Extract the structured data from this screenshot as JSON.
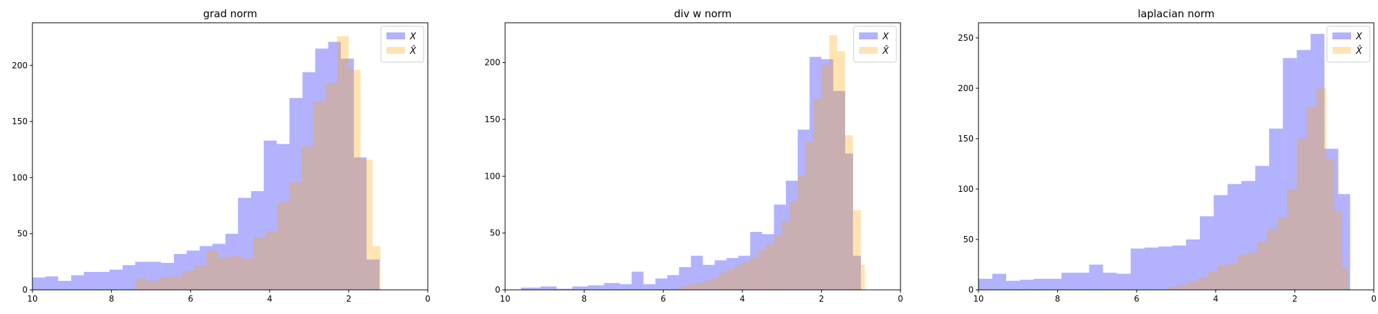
{
  "colors": {
    "x": "#0000ff",
    "xhat": "#ffa500"
  },
  "legend_labels": [
    "X",
    "X̂"
  ],
  "chart_data": [
    {
      "type": "histogram",
      "title": "grad norm",
      "xlim": [
        10,
        0
      ],
      "ylim": [
        0,
        238
      ],
      "xticks": [
        10,
        8,
        6,
        4,
        2,
        0
      ],
      "yticks": [
        0,
        50,
        100,
        150,
        200
      ],
      "legend": "top-right",
      "series": [
        {
          "name": "X",
          "bins": [
            [
              10.0,
              9.67,
              11
            ],
            [
              9.67,
              9.35,
              12
            ],
            [
              9.35,
              9.02,
              8
            ],
            [
              9.02,
              8.7,
              13
            ],
            [
              8.7,
              8.37,
              16
            ],
            [
              8.37,
              8.05,
              16
            ],
            [
              8.05,
              7.72,
              18
            ],
            [
              7.72,
              7.4,
              22
            ],
            [
              7.4,
              7.07,
              25
            ],
            [
              7.07,
              6.75,
              25
            ],
            [
              6.75,
              6.42,
              24
            ],
            [
              6.42,
              6.1,
              32
            ],
            [
              6.1,
              5.77,
              35
            ],
            [
              5.77,
              5.45,
              39
            ],
            [
              5.45,
              5.12,
              41
            ],
            [
              5.12,
              4.8,
              50
            ],
            [
              4.8,
              4.47,
              82
            ],
            [
              4.47,
              4.15,
              88
            ],
            [
              4.15,
              3.82,
              133
            ],
            [
              3.82,
              3.5,
              130
            ],
            [
              3.5,
              3.17,
              171
            ],
            [
              3.17,
              2.85,
              194
            ],
            [
              2.85,
              2.52,
              215
            ],
            [
              2.52,
              2.2,
              221
            ],
            [
              2.2,
              1.87,
              206
            ],
            [
              1.87,
              1.55,
              118
            ],
            [
              1.55,
              1.22,
              27
            ]
          ]
        },
        {
          "name": "X̂",
          "bins": [
            [
              7.4,
              7.1,
              10
            ],
            [
              7.1,
              6.8,
              8
            ],
            [
              6.8,
              6.5,
              11
            ],
            [
              6.5,
              6.2,
              12
            ],
            [
              6.2,
              5.9,
              17
            ],
            [
              5.9,
              5.6,
              22
            ],
            [
              5.6,
              5.3,
              35
            ],
            [
              5.3,
              5.0,
              29
            ],
            [
              5.0,
              4.7,
              30
            ],
            [
              4.7,
              4.4,
              28
            ],
            [
              4.4,
              4.1,
              47
            ],
            [
              4.1,
              3.8,
              52
            ],
            [
              3.8,
              3.5,
              78
            ],
            [
              3.5,
              3.2,
              96
            ],
            [
              3.2,
              2.9,
              128
            ],
            [
              2.9,
              2.6,
              168
            ],
            [
              2.6,
              2.3,
              184
            ],
            [
              2.3,
              2.0,
              226
            ],
            [
              2.0,
              1.7,
              196
            ],
            [
              1.7,
              1.4,
              116
            ],
            [
              1.4,
              1.2,
              39
            ]
          ]
        }
      ]
    },
    {
      "type": "histogram",
      "title": "div w norm",
      "xlim": [
        10,
        0
      ],
      "ylim": [
        0,
        235
      ],
      "xticks": [
        10,
        8,
        6,
        4,
        2,
        0
      ],
      "yticks": [
        0,
        50,
        100,
        150,
        200
      ],
      "legend": "top-right",
      "series": [
        {
          "name": "X",
          "bins": [
            [
              9.6,
              9.1,
              2
            ],
            [
              9.1,
              8.7,
              3
            ],
            [
              8.7,
              8.3,
              1
            ],
            [
              8.3,
              7.9,
              3
            ],
            [
              7.9,
              7.5,
              4
            ],
            [
              7.5,
              7.1,
              6
            ],
            [
              7.1,
              6.8,
              5
            ],
            [
              6.8,
              6.5,
              16
            ],
            [
              6.5,
              6.2,
              5
            ],
            [
              6.2,
              5.9,
              10
            ],
            [
              5.9,
              5.6,
              13
            ],
            [
              5.6,
              5.3,
              20
            ],
            [
              5.3,
              5.0,
              30
            ],
            [
              5.0,
              4.7,
              22
            ],
            [
              4.7,
              4.4,
              26
            ],
            [
              4.4,
              4.1,
              28
            ],
            [
              4.1,
              3.8,
              30
            ],
            [
              3.8,
              3.5,
              51
            ],
            [
              3.5,
              3.2,
              49
            ],
            [
              3.2,
              2.9,
              75
            ],
            [
              2.9,
              2.6,
              96
            ],
            [
              2.6,
              2.3,
              141
            ],
            [
              2.3,
              2.0,
              205
            ],
            [
              2.0,
              1.7,
              203
            ],
            [
              1.7,
              1.4,
              175
            ],
            [
              1.4,
              1.2,
              120
            ],
            [
              1.2,
              1.0,
              30
            ]
          ]
        },
        {
          "name": "X̂",
          "bins": [
            [
              5.6,
              5.4,
              3
            ],
            [
              5.4,
              5.2,
              5
            ],
            [
              5.2,
              5.0,
              6
            ],
            [
              5.0,
              4.8,
              8
            ],
            [
              4.8,
              4.6,
              10
            ],
            [
              4.6,
              4.4,
              15
            ],
            [
              4.4,
              4.2,
              18
            ],
            [
              4.2,
              4.0,
              22
            ],
            [
              4.0,
              3.8,
              25
            ],
            [
              3.8,
              3.6,
              28
            ],
            [
              3.6,
              3.4,
              35
            ],
            [
              3.4,
              3.2,
              40
            ],
            [
              3.2,
              3.0,
              48
            ],
            [
              3.0,
              2.8,
              60
            ],
            [
              2.8,
              2.6,
              78
            ],
            [
              2.6,
              2.4,
              100
            ],
            [
              2.4,
              2.2,
              130
            ],
            [
              2.2,
              2.0,
              168
            ],
            [
              2.0,
              1.8,
              198
            ],
            [
              1.8,
              1.6,
              224
            ],
            [
              1.6,
              1.4,
              210
            ],
            [
              1.4,
              1.2,
              136
            ],
            [
              1.2,
              1.0,
              70
            ],
            [
              1.0,
              0.9,
              22
            ]
          ]
        }
      ]
    },
    {
      "type": "histogram",
      "title": "laplacian norm",
      "xlim": [
        10,
        0
      ],
      "ylim": [
        0,
        265
      ],
      "xticks": [
        10,
        8,
        6,
        4,
        2,
        0
      ],
      "yticks": [
        0,
        50,
        100,
        150,
        200,
        250
      ],
      "legend": "top-right",
      "series": [
        {
          "name": "X",
          "bins": [
            [
              10.0,
              9.65,
              11
            ],
            [
              9.65,
              9.3,
              16
            ],
            [
              9.3,
              8.95,
              9
            ],
            [
              8.95,
              8.6,
              10
            ],
            [
              8.6,
              8.25,
              11
            ],
            [
              8.25,
              7.9,
              11
            ],
            [
              7.9,
              7.55,
              17
            ],
            [
              7.55,
              7.2,
              17
            ],
            [
              7.2,
              6.85,
              25
            ],
            [
              6.85,
              6.5,
              17
            ],
            [
              6.5,
              6.15,
              16
            ],
            [
              6.15,
              5.8,
              41
            ],
            [
              5.8,
              5.45,
              42
            ],
            [
              5.45,
              5.1,
              43
            ],
            [
              5.1,
              4.75,
              44
            ],
            [
              4.75,
              4.4,
              50
            ],
            [
              4.4,
              4.05,
              73
            ],
            [
              4.05,
              3.7,
              94
            ],
            [
              3.7,
              3.35,
              105
            ],
            [
              3.35,
              3.0,
              108
            ],
            [
              3.0,
              2.65,
              123
            ],
            [
              2.65,
              2.3,
              160
            ],
            [
              2.3,
              1.95,
              230
            ],
            [
              1.95,
              1.6,
              238
            ],
            [
              1.6,
              1.25,
              254
            ],
            [
              1.25,
              0.9,
              140
            ],
            [
              0.9,
              0.6,
              95
            ]
          ]
        },
        {
          "name": "X̂",
          "bins": [
            [
              5.2,
              4.95,
              3
            ],
            [
              4.95,
              4.7,
              5
            ],
            [
              4.7,
              4.45,
              8
            ],
            [
              4.45,
              4.2,
              12
            ],
            [
              4.2,
              3.95,
              18
            ],
            [
              3.95,
              3.7,
              24
            ],
            [
              3.7,
              3.45,
              26
            ],
            [
              3.45,
              3.2,
              35
            ],
            [
              3.2,
              2.95,
              37
            ],
            [
              2.95,
              2.7,
              48
            ],
            [
              2.7,
              2.45,
              60
            ],
            [
              2.45,
              2.2,
              72
            ],
            [
              2.2,
              1.95,
              100
            ],
            [
              1.95,
              1.7,
              150
            ],
            [
              1.7,
              1.45,
              182
            ],
            [
              1.45,
              1.2,
              200
            ],
            [
              1.2,
              1.0,
              130
            ],
            [
              1.0,
              0.8,
              78
            ],
            [
              0.8,
              0.65,
              22
            ]
          ]
        }
      ]
    }
  ]
}
